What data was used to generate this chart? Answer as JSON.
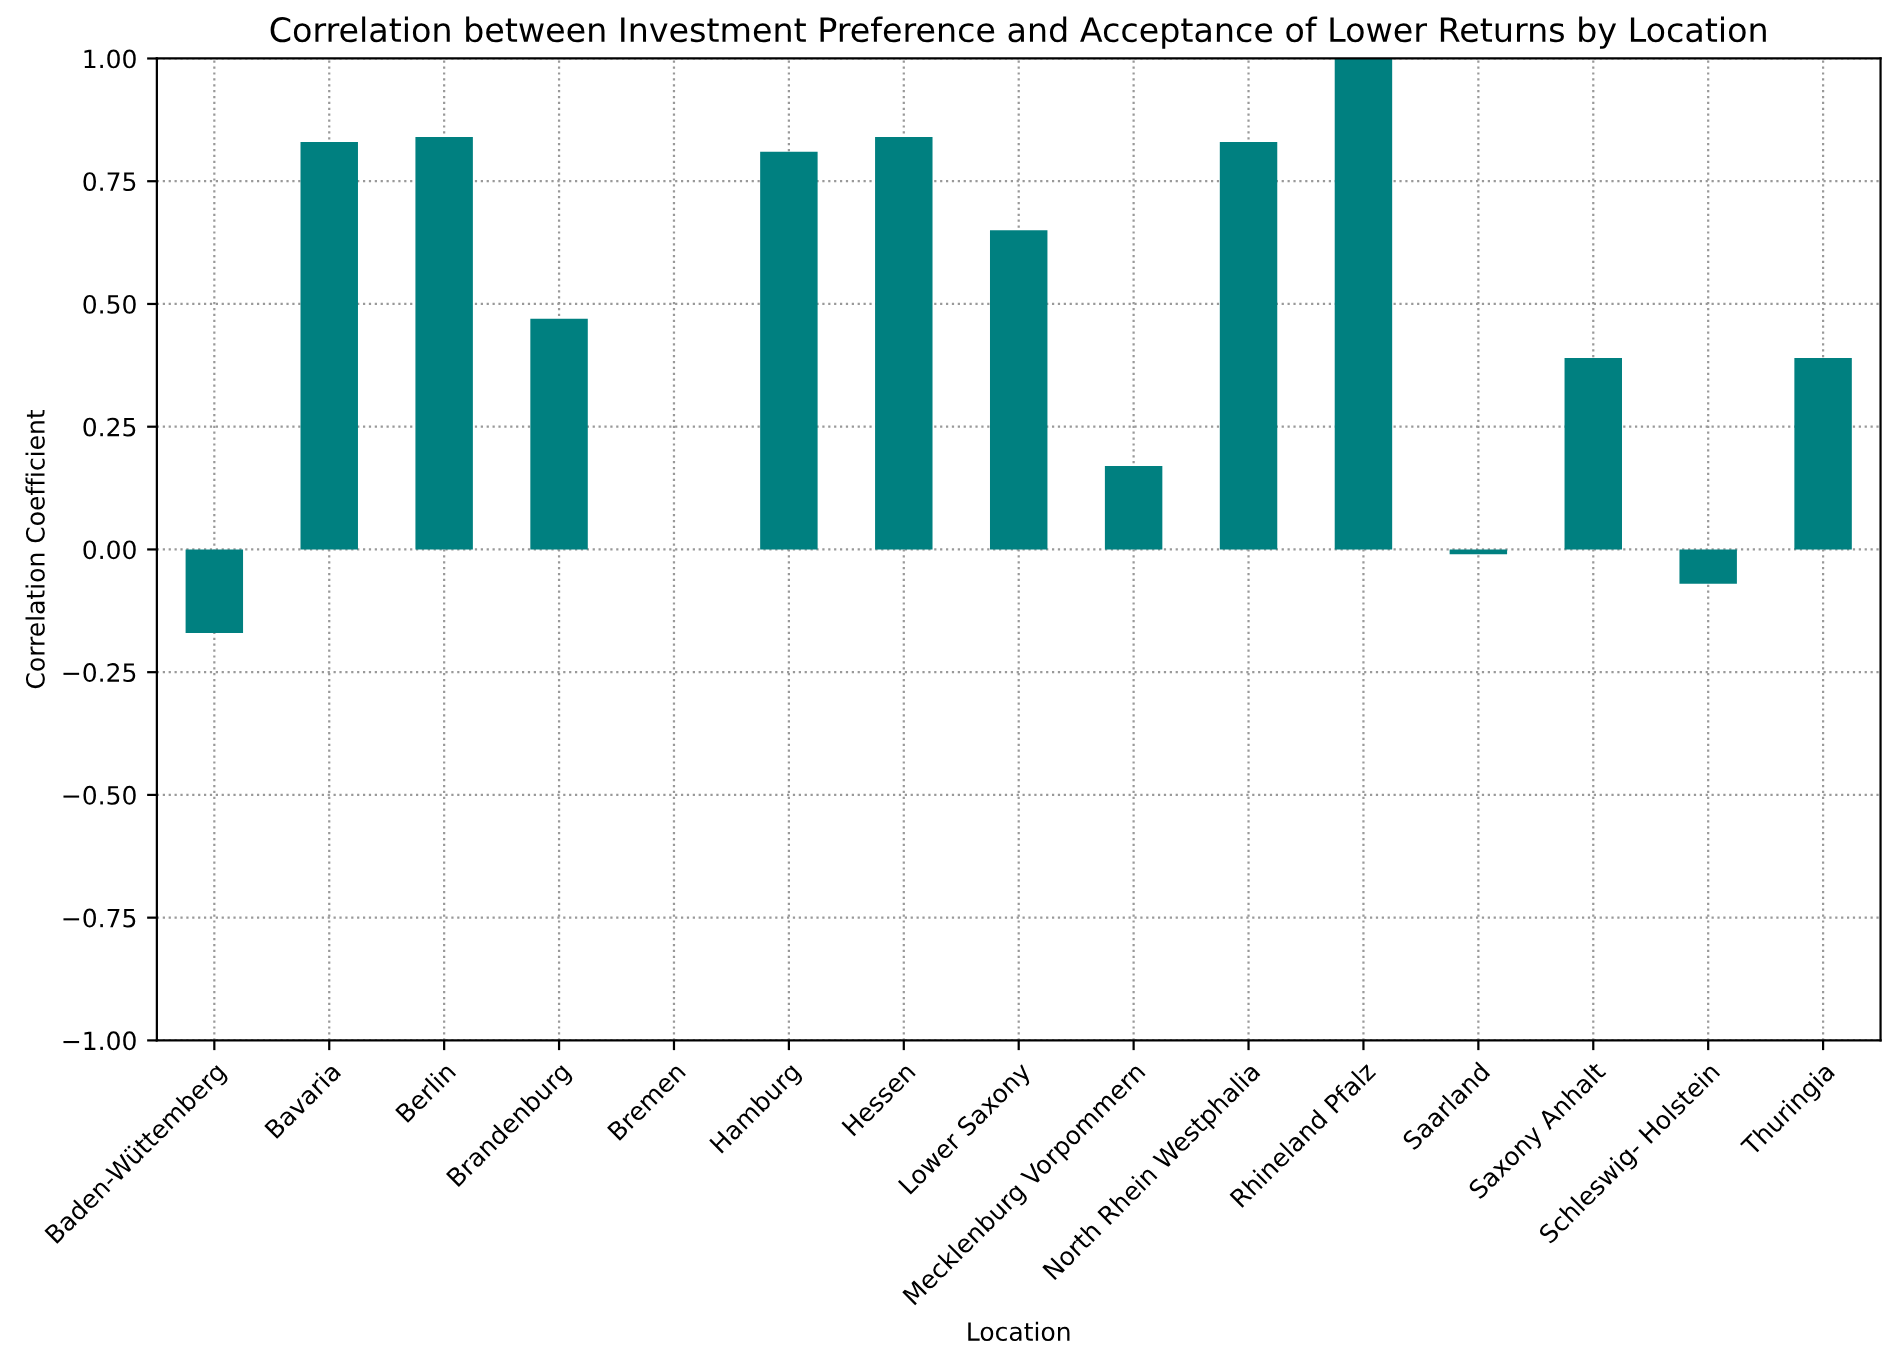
{
  "chart_data": {
    "type": "bar",
    "title": "Correlation between Investment Preference and Acceptance of Lower Returns by Location",
    "xlabel": "Location",
    "ylabel": "Correlation Coefficient",
    "categories": [
      "Baden-Wüttemberg",
      "Bavaria",
      "Berlin",
      "Brandenburg",
      "Bremen",
      "Hamburg",
      "Hessen",
      "Lower Saxony",
      "Mecklenburg Vorpommern",
      "North Rhein Westphalia",
      "Rhineland Pfalz",
      "Saarland",
      "Saxony Anhalt",
      "Schleswig- Holstein",
      "Thuringia"
    ],
    "values": [
      -0.17,
      0.83,
      0.84,
      0.47,
      0,
      0.81,
      0.84,
      0.65,
      0.17,
      0.83,
      1.0,
      -0.01,
      0.39,
      -0.07,
      0.39
    ],
    "color": "#008080",
    "ylim": [
      -1.0,
      1.0
    ],
    "yticks": [
      {
        "value": -1.0,
        "label": "−1.00"
      },
      {
        "value": -0.75,
        "label": "−0.75"
      },
      {
        "value": -0.5,
        "label": "−0.50"
      },
      {
        "value": -0.25,
        "label": "−0.25"
      },
      {
        "value": 0,
        "label": "0.00"
      },
      {
        "value": 0.25,
        "label": "0.25"
      },
      {
        "value": 0.5,
        "label": "0.50"
      },
      {
        "value": 0.75,
        "label": "0.75"
      },
      {
        "value": 1.0,
        "label": "1.00"
      }
    ],
    "grid": true
  }
}
